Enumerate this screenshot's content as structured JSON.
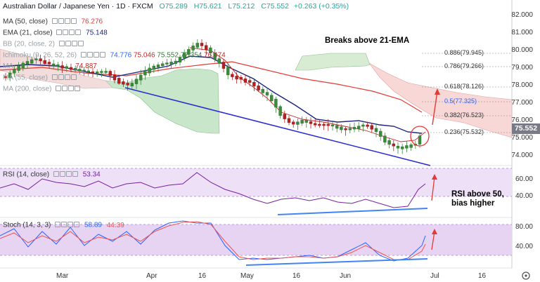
{
  "header": {
    "title": "Australian Dollar / Japanese Yen · 1D · FXCM",
    "open": "O75.289",
    "high": "H75.621",
    "low": "L75.212",
    "close": "C75.552",
    "change": "+0.263 (+0.35%)"
  },
  "indicators": {
    "ma50": {
      "label": "MA (50, close)",
      "value": "76.276",
      "color": "#e53935"
    },
    "ema21": {
      "label": "EMA (21, close)",
      "value": "75.148",
      "color": "#1a237e"
    },
    "bb": {
      "label": "BB (20, close, 2)",
      "value": ""
    },
    "ichimoku": {
      "label": "Ichimoku (9, 26, 52, 26)",
      "v1": "74.776",
      "v2": "75.046",
      "v3": "75.552",
      "v4": "77.354",
      "v5": "76.474"
    },
    "ma_hidden1": {
      "label": "MA",
      "value": "74.887"
    },
    "ma55": {
      "label": "MA (55, close)",
      "value": ""
    },
    "ma200": {
      "label": "MA (200, close)",
      "value": ""
    }
  },
  "price_axis": [
    "82.000",
    "81.000",
    "80.000",
    "79.000",
    "78.000",
    "77.000",
    "76.000",
    "75.000",
    "74.000"
  ],
  "last_price": "75.552",
  "rsi": {
    "label": "RSI (14, close)",
    "value": "53.34",
    "axis": [
      "60.00",
      "40.00"
    ]
  },
  "stoch": {
    "label": "Stoch (14, 3, 3)",
    "k": "58.89",
    "d": "44.39",
    "axis": [
      "80.00",
      "40.00"
    ]
  },
  "x_axis": [
    "Mar",
    "Apr",
    "16",
    "May",
    "16",
    "Jun",
    "Jul",
    "16"
  ],
  "annotations": {
    "breaks": "Breaks above 21-EMA",
    "rsi_note_line1": "RSI above 50,",
    "rsi_note_line2": "bias higher"
  },
  "fib_levels": [
    {
      "label": "0.886(79.945)"
    },
    {
      "label": "0.786(79.266)"
    },
    {
      "label": "0.618(78.126)"
    },
    {
      "label": "0.5(77.325)"
    },
    {
      "label": "0.382(76.523)"
    },
    {
      "label": "0.236(75.532)"
    }
  ],
  "colors": {
    "up": "#26a69a",
    "down": "#ef5350",
    "candle_up": "#3c8a3c",
    "candle_down": "#b22222",
    "ema": "#1a237e",
    "ma": "#e53935",
    "cloud_green": "#c8e6c9",
    "cloud_red": "#f8d7d7",
    "rsi": "#7b1fa2",
    "stoch_k": "#2962ff",
    "stoch_d": "#ef5350",
    "trend": "#1a1aa8",
    "note_arrow": "#e53935"
  },
  "settings_icon": "gear-icon"
}
